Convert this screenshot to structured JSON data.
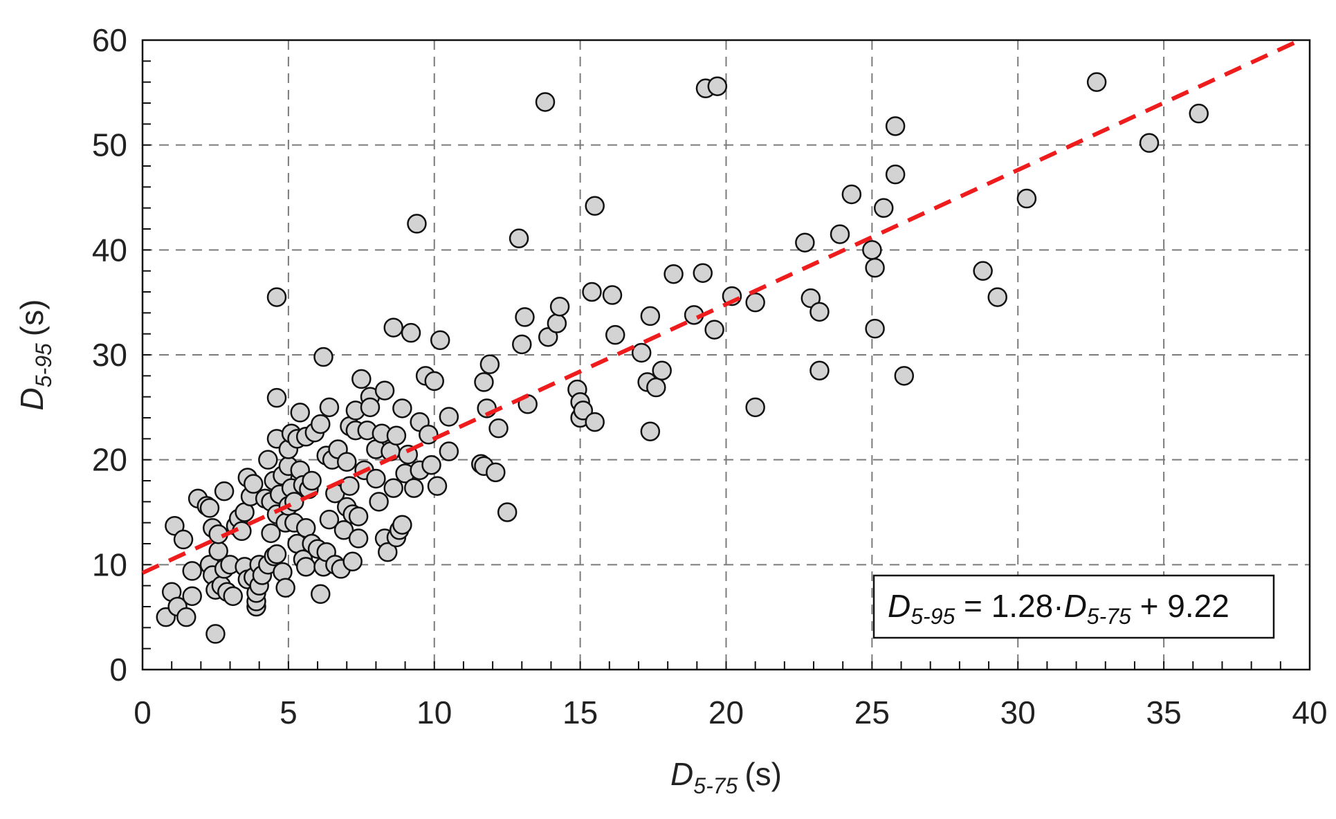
{
  "chart_data": {
    "type": "scatter",
    "title": "",
    "xlabel": {
      "main": "D",
      "sub": "5-75",
      "unit": "(s)"
    },
    "ylabel": {
      "main": "D",
      "sub": "5-95",
      "unit": "(s)"
    },
    "xlim": [
      0,
      40
    ],
    "ylim": [
      0,
      60
    ],
    "xticks": [
      0,
      5,
      10,
      15,
      20,
      25,
      30,
      35,
      40
    ],
    "yticks": [
      0,
      10,
      20,
      30,
      40,
      50,
      60
    ],
    "grid": "dashed",
    "colors": {
      "marker_fill": "#d3d3d3",
      "marker_edge": "#111111",
      "fit_line": "#ee1c1c"
    },
    "fit_line": {
      "slope": 1.28,
      "intercept": 9.22,
      "style": "dashed"
    },
    "equation": {
      "lhs_main": "D",
      "lhs_sub": "5-95",
      "mid": " = 1.28·",
      "rhs_main": "D",
      "rhs_sub": "5-75",
      "tail": " + 9.22"
    },
    "points": [
      [
        0.8,
        5.0
      ],
      [
        1.0,
        7.4
      ],
      [
        1.1,
        13.7
      ],
      [
        1.2,
        6.0
      ],
      [
        1.4,
        12.4
      ],
      [
        1.5,
        5.0
      ],
      [
        1.7,
        9.4
      ],
      [
        1.7,
        7.0
      ],
      [
        1.9,
        16.3
      ],
      [
        2.2,
        15.6
      ],
      [
        2.3,
        15.4
      ],
      [
        2.3,
        10.0
      ],
      [
        2.4,
        13.5
      ],
      [
        2.4,
        9.0
      ],
      [
        2.5,
        7.6
      ],
      [
        2.5,
        3.4
      ],
      [
        2.6,
        11.3
      ],
      [
        2.6,
        12.9
      ],
      [
        2.7,
        8.0
      ],
      [
        2.8,
        17.0
      ],
      [
        2.8,
        9.6
      ],
      [
        2.9,
        7.4
      ],
      [
        3.0,
        10.0
      ],
      [
        3.1,
        7.0
      ],
      [
        3.2,
        13.7
      ],
      [
        3.3,
        14.4
      ],
      [
        3.4,
        13.2
      ],
      [
        3.5,
        15.0
      ],
      [
        3.5,
        9.8
      ],
      [
        3.6,
        8.6
      ],
      [
        3.6,
        18.3
      ],
      [
        3.7,
        16.5
      ],
      [
        3.8,
        17.7
      ],
      [
        3.8,
        8.8
      ],
      [
        3.9,
        6.0
      ],
      [
        3.9,
        6.5
      ],
      [
        3.9,
        7.3
      ],
      [
        4.0,
        10.0
      ],
      [
        4.0,
        8.0
      ],
      [
        4.1,
        9.0
      ],
      [
        4.2,
        16.3
      ],
      [
        4.3,
        20.0
      ],
      [
        4.3,
        10.0
      ],
      [
        4.4,
        13.0
      ],
      [
        4.4,
        16.0
      ],
      [
        4.5,
        18.0
      ],
      [
        4.5,
        10.8
      ],
      [
        4.6,
        22.0
      ],
      [
        4.6,
        14.8
      ],
      [
        4.6,
        35.5
      ],
      [
        4.6,
        25.9
      ],
      [
        4.6,
        11.0
      ],
      [
        4.7,
        16.7
      ],
      [
        4.8,
        18.5
      ],
      [
        4.8,
        9.3
      ],
      [
        4.9,
        14.0
      ],
      [
        4.9,
        7.8
      ],
      [
        5.0,
        19.4
      ],
      [
        5.0,
        21.0
      ],
      [
        5.0,
        15.6
      ],
      [
        5.1,
        17.3
      ],
      [
        5.1,
        22.5
      ],
      [
        5.2,
        16.0
      ],
      [
        5.2,
        14.0
      ],
      [
        5.3,
        22.0
      ],
      [
        5.3,
        12.0
      ],
      [
        5.4,
        24.5
      ],
      [
        5.4,
        19.0
      ],
      [
        5.5,
        17.6
      ],
      [
        5.5,
        10.5
      ],
      [
        5.6,
        22.2
      ],
      [
        5.6,
        13.5
      ],
      [
        5.6,
        9.8
      ],
      [
        5.7,
        17.2
      ],
      [
        5.8,
        18.0
      ],
      [
        5.8,
        12.0
      ],
      [
        5.9,
        22.6
      ],
      [
        6.0,
        11.5
      ],
      [
        6.1,
        23.4
      ],
      [
        6.1,
        7.2
      ],
      [
        6.2,
        29.8
      ],
      [
        6.2,
        9.8
      ],
      [
        6.3,
        11.2
      ],
      [
        6.3,
        20.4
      ],
      [
        6.4,
        14.3
      ],
      [
        6.4,
        25.0
      ],
      [
        6.5,
        20.0
      ],
      [
        6.6,
        16.8
      ],
      [
        6.6,
        10.0
      ],
      [
        6.7,
        21.0
      ],
      [
        6.8,
        9.6
      ],
      [
        6.9,
        13.3
      ],
      [
        7.0,
        19.8
      ],
      [
        7.0,
        15.5
      ],
      [
        7.1,
        23.2
      ],
      [
        7.1,
        17.5
      ],
      [
        7.2,
        14.8
      ],
      [
        7.2,
        10.3
      ],
      [
        7.3,
        24.7
      ],
      [
        7.3,
        22.8
      ],
      [
        7.4,
        14.6
      ],
      [
        7.4,
        12.5
      ],
      [
        7.5,
        27.7
      ],
      [
        7.6,
        19.0
      ],
      [
        7.7,
        22.8
      ],
      [
        7.8,
        26.0
      ],
      [
        7.8,
        25.0
      ],
      [
        8.0,
        18.2
      ],
      [
        8.0,
        21.0
      ],
      [
        8.1,
        16.0
      ],
      [
        8.2,
        22.5
      ],
      [
        8.3,
        26.6
      ],
      [
        8.3,
        12.5
      ],
      [
        8.4,
        11.2
      ],
      [
        8.5,
        20.8
      ],
      [
        8.6,
        32.6
      ],
      [
        8.6,
        17.3
      ],
      [
        8.7,
        22.3
      ],
      [
        8.7,
        12.6
      ],
      [
        8.8,
        13.3
      ],
      [
        8.9,
        24.9
      ],
      [
        8.9,
        13.8
      ],
      [
        9.0,
        18.7
      ],
      [
        9.1,
        20.5
      ],
      [
        9.2,
        32.1
      ],
      [
        9.3,
        17.3
      ],
      [
        9.4,
        42.5
      ],
      [
        9.5,
        23.6
      ],
      [
        9.5,
        19.0
      ],
      [
        9.7,
        28.0
      ],
      [
        9.8,
        22.4
      ],
      [
        9.9,
        19.5
      ],
      [
        10.0,
        27.5
      ],
      [
        10.1,
        17.5
      ],
      [
        10.2,
        31.4
      ],
      [
        10.5,
        24.1
      ],
      [
        10.5,
        20.8
      ],
      [
        11.6,
        19.6
      ],
      [
        11.7,
        19.4
      ],
      [
        11.7,
        27.4
      ],
      [
        11.8,
        24.9
      ],
      [
        11.9,
        29.1
      ],
      [
        12.1,
        18.8
      ],
      [
        12.2,
        23.0
      ],
      [
        12.5,
        15.0
      ],
      [
        12.9,
        41.1
      ],
      [
        13.0,
        31.0
      ],
      [
        13.1,
        33.6
      ],
      [
        13.2,
        25.3
      ],
      [
        13.8,
        54.1
      ],
      [
        13.9,
        31.7
      ],
      [
        14.2,
        33.0
      ],
      [
        14.3,
        34.6
      ],
      [
        14.9,
        26.7
      ],
      [
        15.0,
        25.5
      ],
      [
        15.0,
        24.0
      ],
      [
        15.1,
        24.7
      ],
      [
        15.4,
        36.0
      ],
      [
        15.5,
        44.2
      ],
      [
        15.5,
        23.6
      ],
      [
        16.1,
        35.7
      ],
      [
        16.2,
        31.9
      ],
      [
        17.1,
        30.2
      ],
      [
        17.3,
        27.4
      ],
      [
        17.4,
        33.7
      ],
      [
        17.4,
        22.7
      ],
      [
        17.6,
        26.9
      ],
      [
        17.8,
        28.5
      ],
      [
        18.2,
        37.7
      ],
      [
        18.9,
        33.8
      ],
      [
        19.2,
        37.8
      ],
      [
        19.3,
        55.4
      ],
      [
        19.7,
        55.6
      ],
      [
        19.6,
        32.4
      ],
      [
        20.2,
        35.6
      ],
      [
        21.0,
        35.0
      ],
      [
        21.0,
        25.0
      ],
      [
        22.7,
        40.7
      ],
      [
        22.9,
        35.4
      ],
      [
        23.2,
        34.1
      ],
      [
        23.2,
        28.5
      ],
      [
        23.9,
        41.5
      ],
      [
        24.3,
        45.3
      ],
      [
        25.0,
        40.0
      ],
      [
        25.1,
        38.3
      ],
      [
        25.1,
        32.5
      ],
      [
        25.4,
        44.0
      ],
      [
        25.8,
        51.8
      ],
      [
        25.8,
        47.2
      ],
      [
        26.1,
        28.0
      ],
      [
        28.8,
        38.0
      ],
      [
        29.3,
        35.5
      ],
      [
        30.3,
        44.9
      ],
      [
        32.7,
        56.0
      ],
      [
        34.5,
        50.2
      ],
      [
        36.2,
        53.0
      ]
    ]
  }
}
